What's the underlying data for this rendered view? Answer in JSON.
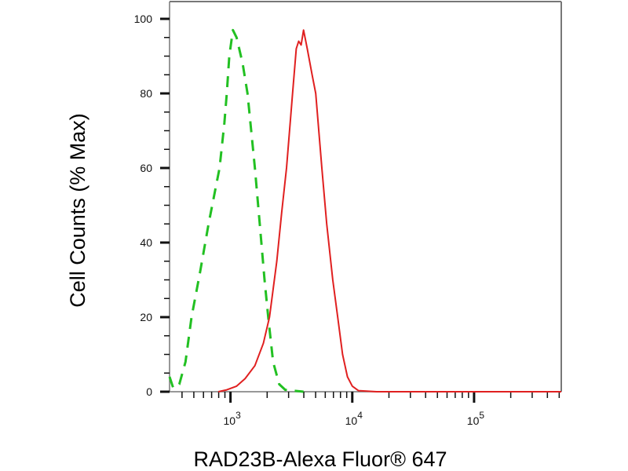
{
  "chart_data": {
    "type": "line",
    "title": "",
    "xlabel": "RAD23B-Alexa Fluor® 647",
    "ylabel": "Cell Counts (% Max)",
    "xscale": "log",
    "xlim": [
      316,
      520000
    ],
    "ylim": [
      0,
      100
    ],
    "grid": false,
    "yticks": [
      0,
      20,
      40,
      60,
      80,
      100
    ],
    "xticks": [
      {
        "value": 1000,
        "base": "10",
        "exp": "3"
      },
      {
        "value": 10000,
        "base": "10",
        "exp": "4"
      },
      {
        "value": 100000,
        "base": "10",
        "exp": "5"
      }
    ],
    "series": [
      {
        "color": "#22c022",
        "style": "dashed",
        "x": [
          316,
          339,
          380,
          427,
          479,
          562,
          661,
          759,
          813,
          891,
          933,
          977,
          1047,
          1122,
          1259,
          1380,
          1585,
          1738,
          1905,
          2042,
          2239,
          2512,
          2818,
          3981
        ],
        "y": [
          4,
          1,
          2,
          8,
          20,
          32,
          45,
          55,
          60,
          72,
          80,
          90,
          97,
          95,
          88,
          80,
          60,
          45,
          30,
          20,
          8,
          2,
          0.5,
          0
        ]
      },
      {
        "color": "#e02020",
        "style": "solid",
        "x": [
          794,
          933,
          1122,
          1318,
          1585,
          1862,
          2089,
          2399,
          2630,
          2884,
          3236,
          3467,
          3631,
          3802,
          3981,
          4266,
          4677,
          5012,
          5623,
          6166,
          6918,
          7586,
          8318,
          9120,
          10000,
          11220,
          15849,
          520000
        ],
        "y": [
          0,
          0.5,
          1.5,
          3.5,
          7,
          13,
          20,
          35,
          48,
          60,
          80,
          92,
          94,
          93,
          97,
          92,
          85,
          80,
          60,
          45,
          30,
          20,
          10,
          4,
          1.5,
          0.3,
          0,
          0
        ]
      }
    ]
  }
}
